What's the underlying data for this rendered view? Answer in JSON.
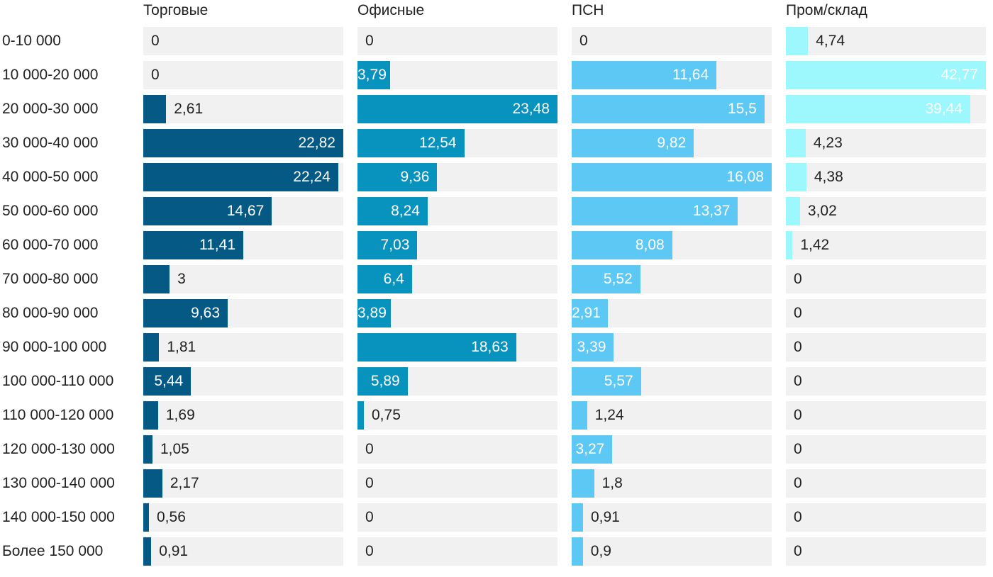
{
  "chart_data": {
    "type": "bar",
    "orientation": "horizontal",
    "layout": "small-multiples",
    "categories": [
      "0-10 000",
      "10 000-20 000",
      "20 000-30 000",
      "30 000-40 000",
      "40 000-50 000",
      "50 000-60 000",
      "60 000-70 000",
      "70 000-80 000",
      "80 000-90 000",
      "90 000-100 000",
      "100 000-110 000",
      "110 000-120 000",
      "120 000-130 000",
      "130 000-140 000",
      "140 000-150 000",
      "Более 150 000"
    ],
    "series": [
      {
        "name": "Торговые",
        "color": "#045a85",
        "values": [
          0,
          0,
          2.61,
          22.82,
          22.24,
          14.67,
          11.41,
          3,
          9.63,
          1.81,
          5.44,
          1.69,
          1.05,
          2.17,
          0.56,
          0.91
        ],
        "labels": [
          "0",
          "0",
          "2,61",
          "22,82",
          "22,24",
          "14,67",
          "11,41",
          "3",
          "9,63",
          "1,81",
          "5,44",
          "1,69",
          "1,05",
          "2,17",
          "0,56",
          "0,91"
        ]
      },
      {
        "name": "Офисные",
        "color": "#0892be",
        "values": [
          0,
          3.79,
          23.48,
          12.54,
          9.36,
          8.24,
          7.03,
          6.4,
          3.89,
          18.63,
          5.89,
          0.75,
          0,
          0,
          0,
          0
        ],
        "labels": [
          "0",
          "3,79",
          "23,48",
          "12,54",
          "9,36",
          "8,24",
          "7,03",
          "6,4",
          "3,89",
          "18,63",
          "5,89",
          "0,75",
          "0",
          "0",
          "0",
          "0"
        ]
      },
      {
        "name": "ПСН",
        "color": "#5cc8f3",
        "values": [
          0,
          11.64,
          15.5,
          9.82,
          16.08,
          13.37,
          8.08,
          5.52,
          2.91,
          3.39,
          5.57,
          1.24,
          3.27,
          1.8,
          0.91,
          0.9
        ],
        "labels": [
          "0",
          "11,64",
          "15,5",
          "9,82",
          "16,08",
          "13,37",
          "8,08",
          "5,52",
          "2,91",
          "3,39",
          "5,57",
          "1,24",
          "3,27",
          "1,8",
          "0,91",
          "0,9"
        ]
      },
      {
        "name": "Пром/склад",
        "color": "#9cf8fc",
        "values": [
          4.74,
          42.77,
          39.44,
          4.23,
          4.38,
          3.02,
          1.42,
          0,
          0,
          0,
          0,
          0,
          0,
          0,
          0,
          0
        ],
        "labels": [
          "4,74",
          "42,77",
          "39,44",
          "4,23",
          "4,38",
          "3,02",
          "1,42",
          "0",
          "0",
          "0",
          "0",
          "0",
          "0",
          "0",
          "0",
          "0"
        ]
      }
    ],
    "value_label_inside_color": "#ffffff",
    "value_label_outside_color": "#222222",
    "track_color": "#f1f1f1",
    "grid": false,
    "legend": "none"
  }
}
